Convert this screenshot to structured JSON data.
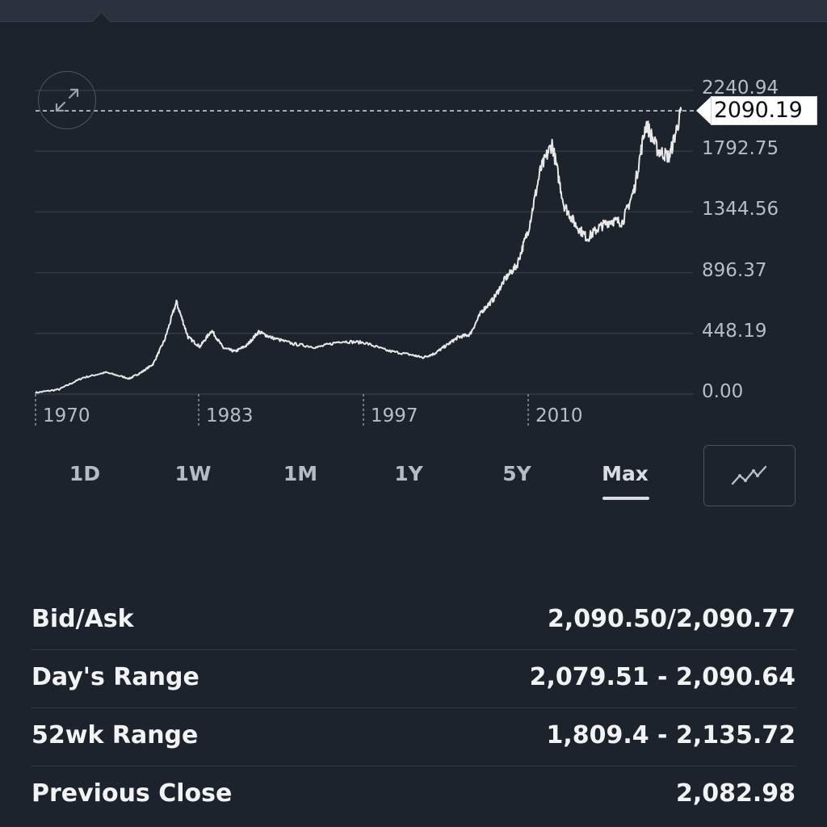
{
  "chart": {
    "current_value": "2090.19",
    "y_ticks": [
      "2240.94",
      "1792.75",
      "1344.56",
      "896.37",
      "448.19",
      "0.00"
    ],
    "x_ticks": [
      "1970",
      "1983",
      "1997",
      "2010"
    ],
    "colors": {
      "background": "#1d232c",
      "line": "#e8e8e8",
      "grid": "#323a45",
      "label": "#b7bdc6"
    },
    "expand_icon": "expand-arrows-icon"
  },
  "chart_data": {
    "type": "line",
    "series": [
      {
        "x": [
          1968,
          1970,
          1972,
          1974,
          1976,
          1977,
          1978,
          1979,
          1980,
          1981,
          1982,
          1983,
          1984,
          1985,
          1986,
          1987,
          1988,
          1990,
          1992,
          1994,
          1996,
          1998,
          2000,
          2001,
          2002,
          2003,
          2004,
          2005,
          2006,
          2007,
          2008,
          2009,
          2010,
          2011,
          2012,
          2013,
          2014,
          2015,
          2016,
          2017,
          2018,
          2019,
          2020,
          2021,
          2022,
          2023
        ],
        "y": [
          10,
          35,
          120,
          160,
          115,
          160,
          220,
          400,
          680,
          420,
          350,
          470,
          340,
          315,
          360,
          460,
          420,
          370,
          345,
          390,
          380,
          320,
          290,
          270,
          300,
          360,
          420,
          440,
          610,
          700,
          850,
          950,
          1220,
          1650,
          1850,
          1400,
          1250,
          1150,
          1230,
          1280,
          1270,
          1510,
          2000,
          1800,
          1750,
          2090
        ]
      }
    ],
    "xlim": [
      1968,
      2024
    ],
    "ylim": [
      0,
      2240.94
    ],
    "grid": true
  },
  "ranges": {
    "items": [
      "1D",
      "1W",
      "1M",
      "1Y",
      "5Y",
      "Max"
    ],
    "active": "Max",
    "chart_type_icon": "line-chart-icon"
  },
  "stats": [
    {
      "label": "Bid/Ask",
      "value": "2,090.50/2,090.77"
    },
    {
      "label": "Day's Range",
      "value": "2,079.51 - 2,090.64"
    },
    {
      "label": "52wk Range",
      "value": "1,809.4 - 2,135.72"
    },
    {
      "label": "Previous Close",
      "value": "2,082.98"
    }
  ]
}
